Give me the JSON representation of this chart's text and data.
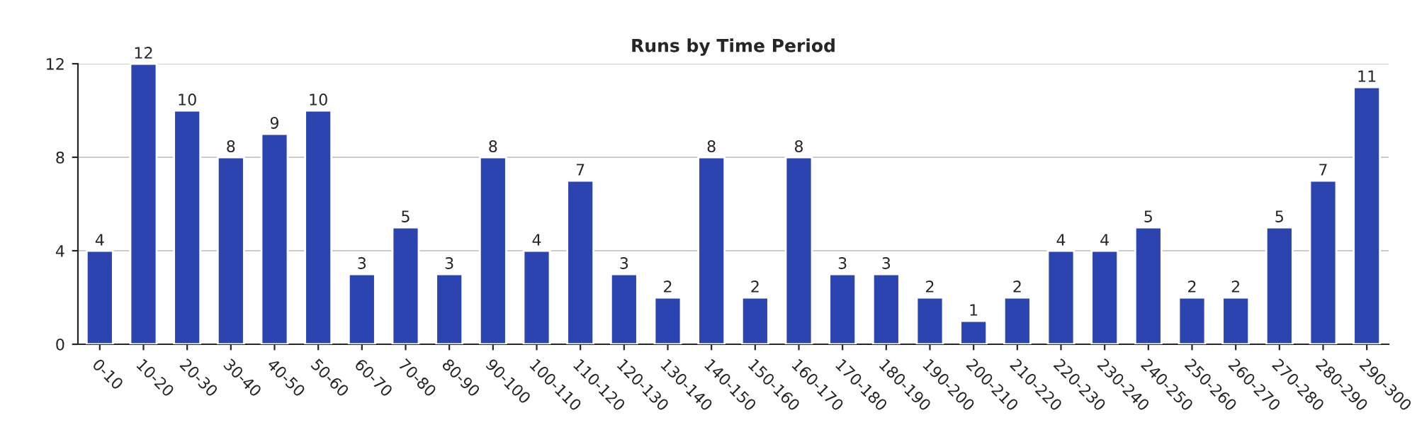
{
  "chart_data": {
    "type": "bar",
    "title": "Runs by Time Period",
    "categories": [
      "0-10",
      "10-20",
      "20-30",
      "30-40",
      "40-50",
      "50-60",
      "60-70",
      "70-80",
      "80-90",
      "90-100",
      "100-110",
      "110-120",
      "120-130",
      "130-140",
      "140-150",
      "150-160",
      "160-170",
      "170-180",
      "180-190",
      "190-200",
      "200-210",
      "210-220",
      "220-230",
      "230-240",
      "240-250",
      "250-260",
      "260-270",
      "270-280",
      "280-290",
      "290-300"
    ],
    "values": [
      4,
      12,
      10,
      8,
      9,
      10,
      3,
      5,
      3,
      8,
      4,
      7,
      3,
      2,
      8,
      2,
      8,
      3,
      3,
      2,
      1,
      2,
      4,
      4,
      5,
      2,
      2,
      5,
      7,
      11
    ],
    "color": "#2b44b0",
    "ylim": [
      0,
      12
    ],
    "yticks": [
      0,
      4,
      8,
      12
    ],
    "grid": "y",
    "data_labels": true
  }
}
